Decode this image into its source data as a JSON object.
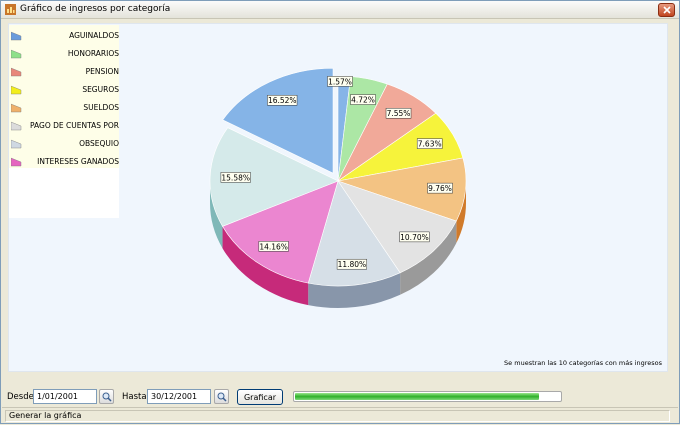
{
  "window": {
    "title": "Gráfico de ingresos por categoría",
    "icon": "chart-app-icon",
    "close_icon": "close-icon"
  },
  "legend": {
    "items": [
      {
        "label": "AGUINALDOS",
        "color": "#6a9cdc"
      },
      {
        "label": "HONORARIOS",
        "color": "#8ee08a"
      },
      {
        "label": "PENSION",
        "color": "#e8877a"
      },
      {
        "label": "SEGUROS",
        "color": "#f2ee1c"
      },
      {
        "label": "SUELDOS",
        "color": "#efb06a"
      },
      {
        "label": "PAGO DE CUENTAS POR",
        "color": "#dcdcdc"
      },
      {
        "label": "OBSEQUIO",
        "color": "#cfd8e2"
      },
      {
        "label": "INTERESES GANADOS",
        "color": "#e565c0"
      }
    ]
  },
  "chart_data": {
    "type": "pie",
    "values": [
      1.57,
      4.72,
      7.55,
      7.63,
      9.76,
      10.7,
      11.8,
      14.16,
      15.58,
      16.52
    ],
    "labels": [
      "1.57%",
      "4.72%",
      "7.55%",
      "7.63%",
      "9.76%",
      "10.70%",
      "11.80%",
      "14.16%",
      "15.58%",
      "16.52%"
    ],
    "colors": [
      "#7fb0e6",
      "#a8e6a0",
      "#f0a494",
      "#f5f230",
      "#f2c07c",
      "#e2e2e2",
      "#d4dde6",
      "#ea80ce",
      "#d3e9e9",
      "#7eb0e6"
    ],
    "side_colors": [
      "#4b7fbf",
      "#6cb266",
      "#c56e62",
      "#b6b31a",
      "#d07a2a",
      "#9a9a9a",
      "#8896aa",
      "#c62a7a",
      "#7fb8b8",
      "#0a2d8a"
    ],
    "note": "Se muestran las 10 categorías con más ingresos"
  },
  "controls": {
    "desde_label": "Desde:",
    "desde_value": "1/01/2001",
    "hasta_label": "Hasta:",
    "hasta_value": "30/12/2001",
    "graficar_label": "Graficar",
    "progress": 0.92,
    "search_icon": "magnifier-icon"
  },
  "status": {
    "text": "Generar la gráfica"
  }
}
